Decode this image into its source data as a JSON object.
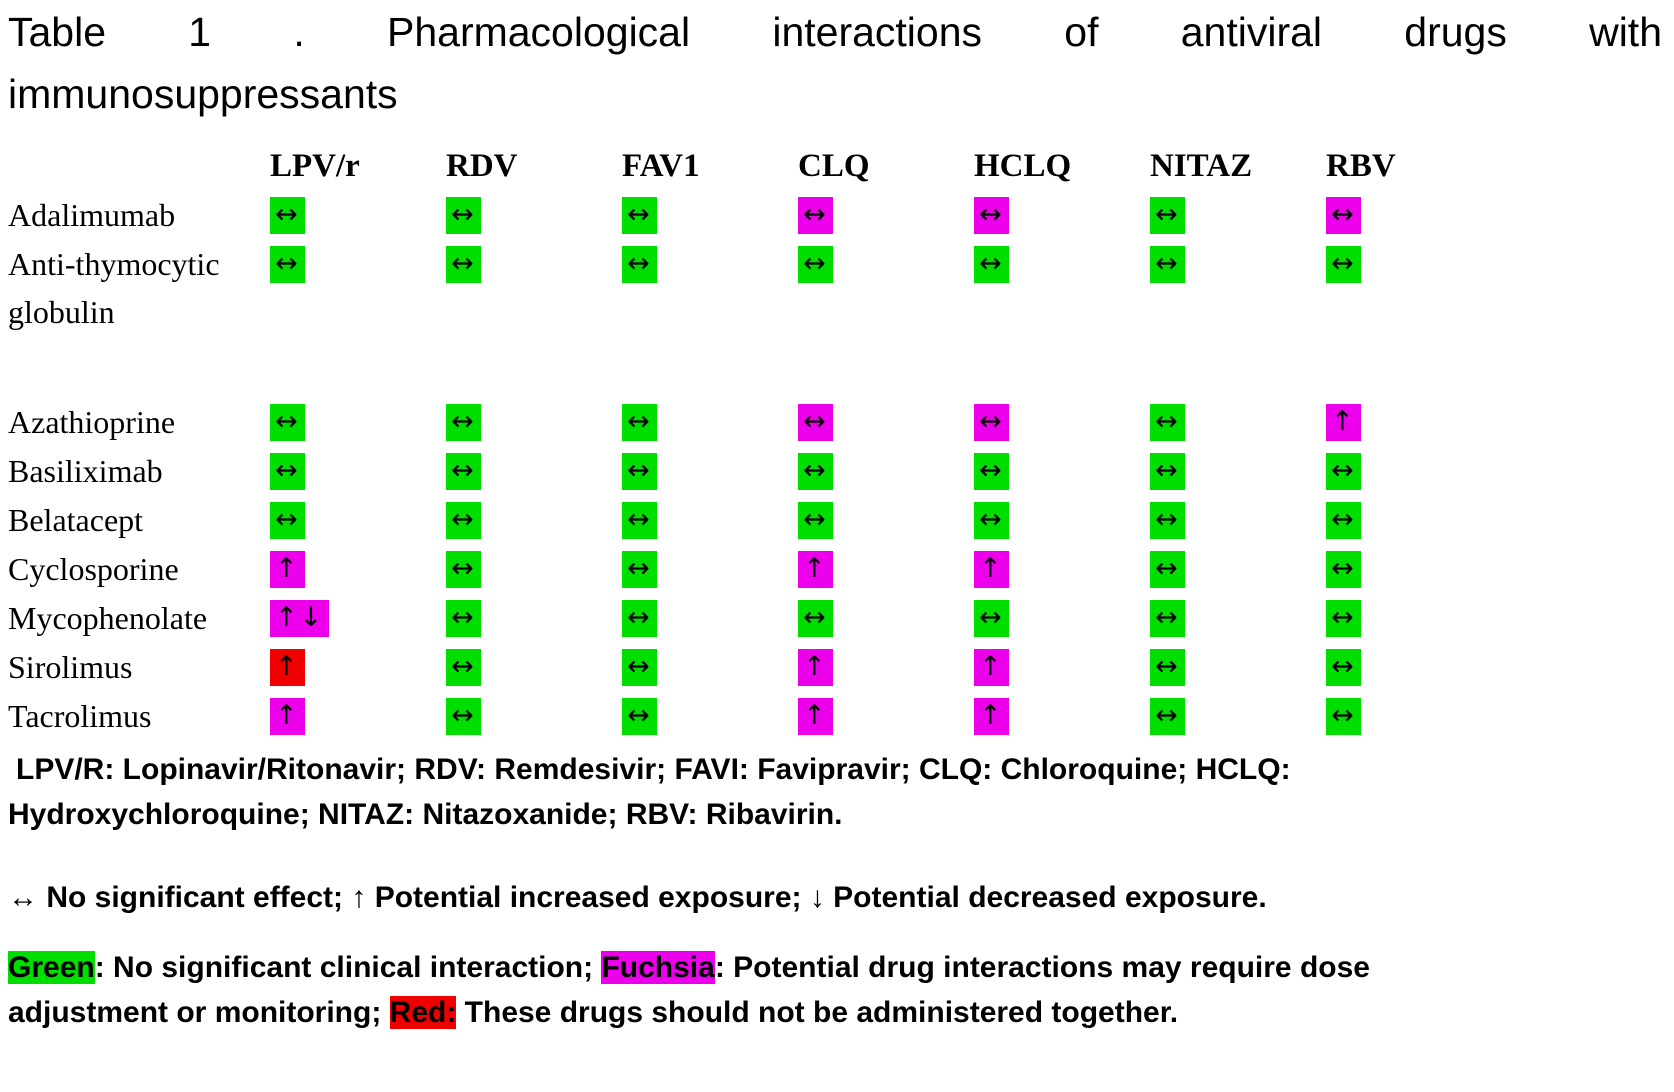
{
  "colors": {
    "green": "#00DD00",
    "fuchsia": "#EC00EC",
    "red": "#EE0000"
  },
  "title": {
    "line1": "Table 1 . Pharmacological interactions of antiviral drugs with",
    "line2": "immunosuppressants"
  },
  "table": {
    "columns": [
      "LPV/r",
      "RDV",
      "FAV1",
      "CLQ",
      "HCLQ",
      "NITAZ",
      "RBV"
    ],
    "rows": [
      {
        "label": "Adalimumab",
        "cells": [
          {
            "color": "green",
            "symbol": "↔"
          },
          {
            "color": "green",
            "symbol": "↔"
          },
          {
            "color": "green",
            "symbol": "↔"
          },
          {
            "color": "fuchsia",
            "symbol": "↔"
          },
          {
            "color": "fuchsia",
            "symbol": "↔"
          },
          {
            "color": "green",
            "symbol": "↔"
          },
          {
            "color": "fuchsia",
            "symbol": "↔"
          }
        ]
      },
      {
        "label": "Anti-thymocytic globulin",
        "cells": [
          {
            "color": "green",
            "symbol": "↔"
          },
          {
            "color": "green",
            "symbol": "↔"
          },
          {
            "color": "green",
            "symbol": "↔"
          },
          {
            "color": "green",
            "symbol": "↔"
          },
          {
            "color": "green",
            "symbol": "↔"
          },
          {
            "color": "green",
            "symbol": "↔"
          },
          {
            "color": "green",
            "symbol": "↔"
          }
        ]
      },
      {
        "spacer": true
      },
      {
        "label": "Azathioprine",
        "cells": [
          {
            "color": "green",
            "symbol": "↔"
          },
          {
            "color": "green",
            "symbol": "↔"
          },
          {
            "color": "green",
            "symbol": "↔"
          },
          {
            "color": "fuchsia",
            "symbol": "↔"
          },
          {
            "color": "fuchsia",
            "symbol": "↔"
          },
          {
            "color": "green",
            "symbol": "↔"
          },
          {
            "color": "fuchsia",
            "symbol": "↑"
          }
        ]
      },
      {
        "label": "Basiliximab",
        "cells": [
          {
            "color": "green",
            "symbol": "↔"
          },
          {
            "color": "green",
            "symbol": "↔"
          },
          {
            "color": "green",
            "symbol": "↔"
          },
          {
            "color": "green",
            "symbol": "↔"
          },
          {
            "color": "green",
            "symbol": "↔"
          },
          {
            "color": "green",
            "symbol": "↔"
          },
          {
            "color": "green",
            "symbol": "↔"
          }
        ]
      },
      {
        "label": "Belatacept",
        "cells": [
          {
            "color": "green",
            "symbol": "↔"
          },
          {
            "color": "green",
            "symbol": "↔"
          },
          {
            "color": "green",
            "symbol": "↔"
          },
          {
            "color": "green",
            "symbol": "↔"
          },
          {
            "color": "green",
            "symbol": "↔"
          },
          {
            "color": "green",
            "symbol": "↔"
          },
          {
            "color": "green",
            "symbol": "↔"
          }
        ]
      },
      {
        "label": "Cyclosporine",
        "cells": [
          {
            "color": "fuchsia",
            "symbol": "↑"
          },
          {
            "color": "green",
            "symbol": "↔"
          },
          {
            "color": "green",
            "symbol": "↔"
          },
          {
            "color": "fuchsia",
            "symbol": "↑"
          },
          {
            "color": "fuchsia",
            "symbol": "↑"
          },
          {
            "color": "green",
            "symbol": "↔"
          },
          {
            "color": "green",
            "symbol": "↔"
          }
        ]
      },
      {
        "label": "Mycophenolate",
        "cells": [
          {
            "color": "fuchsia",
            "symbol": "↑↓"
          },
          {
            "color": "green",
            "symbol": "↔"
          },
          {
            "color": "green",
            "symbol": "↔"
          },
          {
            "color": "green",
            "symbol": "↔"
          },
          {
            "color": "green",
            "symbol": "↔"
          },
          {
            "color": "green",
            "symbol": "↔"
          },
          {
            "color": "green",
            "symbol": "↔"
          }
        ]
      },
      {
        "label": "Sirolimus",
        "cells": [
          {
            "color": "red",
            "symbol": "↑"
          },
          {
            "color": "green",
            "symbol": "↔"
          },
          {
            "color": "green",
            "symbol": "↔"
          },
          {
            "color": "fuchsia",
            "symbol": "↑"
          },
          {
            "color": "fuchsia",
            "symbol": "↑"
          },
          {
            "color": "green",
            "symbol": "↔"
          },
          {
            "color": "green",
            "symbol": "↔"
          }
        ]
      },
      {
        "label": "Tacrolimus",
        "cells": [
          {
            "color": "fuchsia",
            "symbol": "↑"
          },
          {
            "color": "green",
            "symbol": "↔"
          },
          {
            "color": "green",
            "symbol": "↔"
          },
          {
            "color": "fuchsia",
            "symbol": "↑"
          },
          {
            "color": "fuchsia",
            "symbol": "↑"
          },
          {
            "color": "green",
            "symbol": "↔"
          },
          {
            "color": "green",
            "symbol": "↔"
          }
        ]
      }
    ]
  },
  "abbreviations": {
    "line1": "LPV/R: Lopinavir/Ritonavir; RDV: Remdesivir; FAVI: Favipravir; CLQ: Chloroquine; HCLQ:",
    "line2": "Hydroxychloroquine; NITAZ: Nitazoxanide; RBV: Ribavirin."
  },
  "symbols_legend": "↔ No significant effect; ↑ Potential increased exposure; ↓ Potential decreased exposure.",
  "color_legend": [
    {
      "text": "Green",
      "highlight": "green"
    },
    {
      "text": ": No significant clinical interaction; "
    },
    {
      "text": "Fuchsia",
      "highlight": "fuchsia"
    },
    {
      "text": ": Potential drug interactions may require dose adjustment or monitoring; "
    },
    {
      "text": "Red:",
      "highlight": "red"
    },
    {
      "text": " These drugs should not be administered together."
    }
  ]
}
